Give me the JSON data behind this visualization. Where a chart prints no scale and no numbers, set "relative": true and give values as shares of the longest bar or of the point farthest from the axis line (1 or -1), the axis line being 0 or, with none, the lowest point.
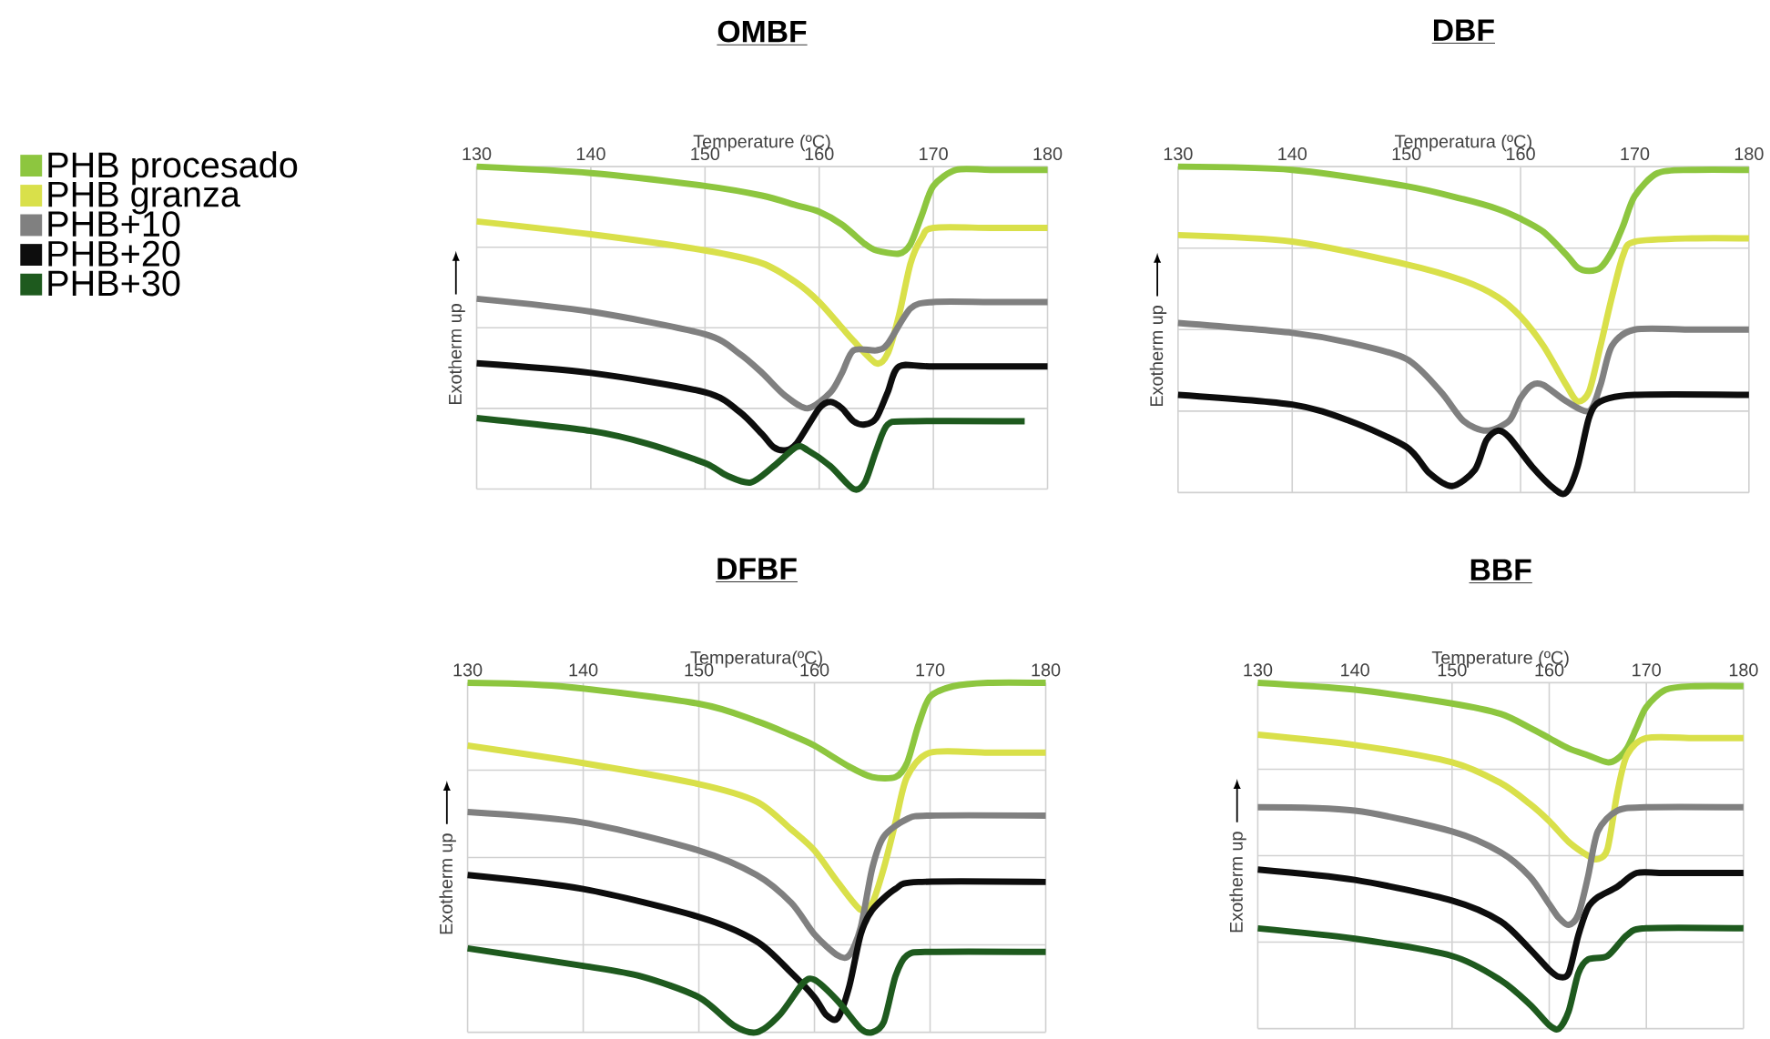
{
  "chart_data": [
    {
      "type": "line",
      "title": "**OMBF**",
      "xlabel": "Temperature (ºC)",
      "ylabel": "Exotherm up",
      "xlim": [
        130,
        180
      ],
      "xticks": [
        130,
        140,
        150,
        160,
        170,
        180
      ],
      "relative": true,
      "grid": true,
      "legend": "left",
      "series": [
        {
          "name": "PHB procesado",
          "color": "#8dc63f",
          "x": [
            130,
            140,
            150,
            155,
            158,
            160,
            162,
            164,
            165,
            167,
            168,
            169,
            170,
            172,
            175,
            180
          ],
          "values": [
            1.0,
            0.98,
            0.94,
            0.91,
            0.88,
            0.86,
            0.82,
            0.76,
            0.74,
            0.73,
            0.76,
            0.85,
            0.94,
            0.99,
            0.99,
            0.99
          ]
        },
        {
          "name": "PHB granza",
          "color": "#d9e04a",
          "x": [
            130,
            140,
            150,
            155,
            158,
            160,
            162,
            163,
            165,
            166,
            167,
            168,
            169,
            170,
            175,
            180
          ],
          "values": [
            0.83,
            0.79,
            0.74,
            0.7,
            0.64,
            0.58,
            0.5,
            0.46,
            0.39,
            0.42,
            0.54,
            0.7,
            0.78,
            0.81,
            0.81,
            0.81
          ]
        },
        {
          "name": "PHB+10",
          "color": "#808080",
          "x": [
            130,
            140,
            150,
            153,
            155,
            157,
            159,
            161,
            162,
            163,
            165,
            166,
            168,
            170,
            175,
            180
          ],
          "values": [
            0.59,
            0.55,
            0.48,
            0.42,
            0.36,
            0.29,
            0.25,
            0.3,
            0.36,
            0.43,
            0.43,
            0.45,
            0.56,
            0.58,
            0.58,
            0.58
          ]
        },
        {
          "name": "PHB+20",
          "color": "#0d0d0d",
          "x": [
            130,
            140,
            150,
            153,
            155,
            156,
            157,
            158,
            160,
            161,
            162,
            163,
            164,
            165,
            166,
            167,
            170,
            180
          ],
          "values": [
            0.39,
            0.36,
            0.3,
            0.24,
            0.17,
            0.13,
            0.12,
            0.14,
            0.25,
            0.27,
            0.25,
            0.21,
            0.2,
            0.22,
            0.3,
            0.38,
            0.38,
            0.38
          ]
        },
        {
          "name": "PHB+30",
          "color": "#1e5a1e",
          "x": [
            130,
            140,
            145,
            150,
            152,
            154,
            156,
            158,
            159,
            161,
            163,
            164,
            165,
            166,
            168,
            178
          ],
          "values": [
            0.22,
            0.18,
            0.14,
            0.08,
            0.04,
            0.02,
            0.07,
            0.13,
            0.12,
            0.07,
            0.0,
            0.02,
            0.12,
            0.2,
            0.21,
            0.21
          ]
        }
      ]
    },
    {
      "type": "line",
      "title": "**DBF**",
      "xlabel": "Temperatura (ºC)",
      "ylabel": "Exotherm up",
      "xlim": [
        130,
        180
      ],
      "xticks": [
        130,
        140,
        150,
        160,
        170,
        180
      ],
      "relative": true,
      "grid": true,
      "series": [
        {
          "color": "#8dc63f",
          "x": [
            130,
            140,
            150,
            155,
            158,
            160,
            162,
            164,
            165,
            166,
            167,
            168,
            169,
            170,
            172,
            175,
            180
          ],
          "values": [
            1.0,
            0.99,
            0.94,
            0.9,
            0.87,
            0.84,
            0.8,
            0.73,
            0.69,
            0.68,
            0.69,
            0.74,
            0.82,
            0.91,
            0.98,
            0.99,
            0.99
          ]
        },
        {
          "color": "#d9e04a",
          "x": [
            130,
            140,
            150,
            155,
            158,
            160,
            162,
            164,
            165,
            166,
            167,
            168,
            169,
            170,
            175,
            180
          ],
          "values": [
            0.79,
            0.77,
            0.7,
            0.65,
            0.6,
            0.54,
            0.45,
            0.33,
            0.28,
            0.31,
            0.45,
            0.6,
            0.73,
            0.77,
            0.78,
            0.78
          ]
        },
        {
          "color": "#808080",
          "x": [
            130,
            140,
            145,
            150,
            153,
            155,
            157,
            159,
            160,
            161,
            162,
            164,
            166,
            167,
            168,
            170,
            175,
            180
          ],
          "values": [
            0.52,
            0.49,
            0.46,
            0.41,
            0.31,
            0.22,
            0.19,
            0.22,
            0.29,
            0.33,
            0.33,
            0.28,
            0.25,
            0.33,
            0.45,
            0.5,
            0.5,
            0.5
          ]
        },
        {
          "color": "#0d0d0d",
          "x": [
            130,
            140,
            145,
            150,
            152,
            154,
            156,
            157,
            158,
            159,
            161,
            163,
            164,
            165,
            166,
            167,
            170,
            180
          ],
          "values": [
            0.3,
            0.27,
            0.22,
            0.14,
            0.06,
            0.02,
            0.07,
            0.16,
            0.19,
            0.17,
            0.08,
            0.01,
            0.0,
            0.08,
            0.23,
            0.28,
            0.3,
            0.3
          ]
        }
      ]
    },
    {
      "type": "line",
      "title": "**DFBF**",
      "xlabel": "Temperatura(ºC)",
      "ylabel": "Exotherm up",
      "xlim": [
        130,
        180
      ],
      "xticks": [
        130,
        140,
        150,
        160,
        170,
        180
      ],
      "relative": true,
      "grid": true,
      "series": [
        {
          "color": "#8dc63f",
          "x": [
            130,
            138,
            150,
            155,
            158,
            160,
            163,
            165,
            167,
            168,
            169,
            170,
            172,
            175,
            180
          ],
          "values": [
            1.0,
            0.99,
            0.94,
            0.89,
            0.85,
            0.82,
            0.76,
            0.73,
            0.73,
            0.77,
            0.88,
            0.96,
            0.99,
            1.0,
            1.0
          ]
        },
        {
          "color": "#d9e04a",
          "x": [
            130,
            140,
            150,
            155,
            158,
            160,
            162,
            164,
            165,
            166,
            167,
            168,
            170,
            175,
            180
          ],
          "values": [
            0.82,
            0.77,
            0.71,
            0.66,
            0.58,
            0.52,
            0.43,
            0.35,
            0.37,
            0.47,
            0.6,
            0.73,
            0.8,
            0.8,
            0.8
          ]
        },
        {
          "color": "#808080",
          "x": [
            130,
            140,
            150,
            155,
            158,
            160,
            162,
            163,
            164,
            165,
            166,
            168,
            170,
            180
          ],
          "values": [
            0.63,
            0.6,
            0.52,
            0.45,
            0.37,
            0.28,
            0.22,
            0.22,
            0.3,
            0.47,
            0.56,
            0.61,
            0.62,
            0.62
          ]
        },
        {
          "color": "#0d0d0d",
          "x": [
            130,
            140,
            150,
            155,
            158,
            160,
            161,
            162,
            163,
            164,
            165,
            167,
            169,
            180
          ],
          "values": [
            0.45,
            0.41,
            0.33,
            0.26,
            0.17,
            0.1,
            0.05,
            0.04,
            0.13,
            0.28,
            0.35,
            0.41,
            0.43,
            0.43
          ]
        },
        {
          "color": "#1e5a1e",
          "x": [
            130,
            140,
            145,
            150,
            153,
            155,
            157,
            159,
            160,
            162,
            164,
            165,
            166,
            167,
            168,
            170,
            180
          ],
          "values": [
            0.24,
            0.19,
            0.16,
            0.1,
            0.02,
            0.0,
            0.05,
            0.14,
            0.15,
            0.09,
            0.01,
            0.0,
            0.03,
            0.16,
            0.22,
            0.23,
            0.23
          ]
        }
      ]
    },
    {
      "type": "line",
      "title": "**BBF**",
      "xlabel": "Temperature (ºC)",
      "ylabel": "Exotherm up",
      "xlim": [
        130,
        180
      ],
      "xticks": [
        130,
        140,
        150,
        160,
        170,
        180
      ],
      "relative": true,
      "grid": true,
      "series": [
        {
          "color": "#8dc63f",
          "x": [
            130,
            140,
            150,
            155,
            158,
            160,
            162,
            164,
            166,
            167,
            168,
            169,
            170,
            172,
            175,
            180
          ],
          "values": [
            1.0,
            0.98,
            0.94,
            0.91,
            0.87,
            0.84,
            0.81,
            0.79,
            0.77,
            0.78,
            0.81,
            0.87,
            0.93,
            0.98,
            0.99,
            0.99
          ]
        },
        {
          "color": "#d9e04a",
          "x": [
            130,
            140,
            150,
            155,
            158,
            160,
            162,
            164,
            165,
            166,
            167,
            168,
            170,
            175,
            180
          ],
          "values": [
            0.85,
            0.82,
            0.77,
            0.71,
            0.65,
            0.6,
            0.54,
            0.5,
            0.49,
            0.52,
            0.68,
            0.79,
            0.84,
            0.84,
            0.84
          ]
        },
        {
          "color": "#808080",
          "x": [
            130,
            140,
            150,
            155,
            158,
            160,
            161,
            162,
            163,
            164,
            165,
            167,
            170,
            180
          ],
          "values": [
            0.64,
            0.63,
            0.57,
            0.51,
            0.44,
            0.36,
            0.32,
            0.3,
            0.33,
            0.44,
            0.57,
            0.63,
            0.64,
            0.64
          ]
        },
        {
          "color": "#0d0d0d",
          "x": [
            130,
            140,
            150,
            155,
            158,
            160,
            161,
            162,
            163,
            164,
            165,
            167,
            169,
            172,
            180
          ],
          "values": [
            0.46,
            0.43,
            0.37,
            0.31,
            0.23,
            0.17,
            0.15,
            0.16,
            0.27,
            0.35,
            0.38,
            0.41,
            0.45,
            0.45,
            0.45
          ]
        },
        {
          "color": "#1e5a1e",
          "x": [
            130,
            140,
            150,
            155,
            158,
            160,
            161,
            162,
            163,
            164,
            166,
            168,
            170,
            180
          ],
          "values": [
            0.29,
            0.26,
            0.21,
            0.14,
            0.07,
            0.01,
            0.0,
            0.05,
            0.16,
            0.2,
            0.21,
            0.27,
            0.29,
            0.29
          ]
        }
      ]
    }
  ]
}
